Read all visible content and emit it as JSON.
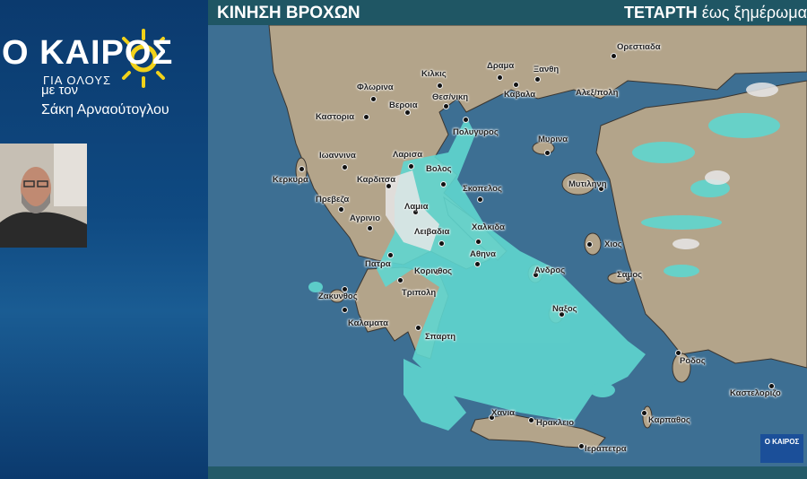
{
  "branding": {
    "logo_text": "Ο ΚΑΙΡΟΣ",
    "logo_subtitle": "ΓΙΑ ΟΛΟΥΣ",
    "host_prefix": "με τον",
    "host_name": "Σάκη Αρναούτογλου",
    "sun_color": "#f2d21a"
  },
  "header": {
    "title": "ΚΙΝΗΣΗ ΒΡΟΧΩΝ",
    "day": "ΤΕΤΑΡΤΗ",
    "period": "έως ξημέρωμα"
  },
  "map": {
    "colors": {
      "sea": "#3d6f93",
      "land": "#b3a48a",
      "rain": "#5fd6cf",
      "heavy_rain": "#e8e8e8"
    },
    "cities": [
      "Ορεστιαδα",
      "Κιλκις",
      "Δραμα",
      "Ξανθη",
      "Φλωρινα",
      "Θεσ/νικη",
      "Καβαλα",
      "Αλεξ/πολη",
      "Καστορια",
      "Βεροια",
      "Πολυγυρος",
      "Μυρινα",
      "Ιωαννινα",
      "Λαρισα",
      "Βολος",
      "Κερκυρα",
      "Καρδιτσα",
      "Σκοπελος",
      "Μυτιληνη",
      "Πρεβεζα",
      "Λαμια",
      "Αγρινιο",
      "Χαλκιδα",
      "Λειβαδια",
      "Χιος",
      "Αθηνα",
      "Πατρα",
      "Κορινθος",
      "Ανδρος",
      "Σαμος",
      "Ζακυνθος",
      "Τριπολη",
      "Ναξος",
      "Καλαματα",
      "Σπαρτη",
      "Ροδος",
      "Καστελοριζο",
      "Χανια",
      "Καρπαθος",
      "Ηρακλειο",
      "Ιεραπετρα"
    ]
  },
  "watermark": {
    "logo_text": "Ο ΚΑΙΡΟΣ"
  }
}
